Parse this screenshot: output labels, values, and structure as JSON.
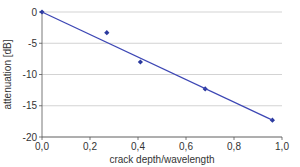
{
  "chart_data": {
    "type": "scatter",
    "x_label": "crack depth/wavelength",
    "y_label": "attenuation [dB]",
    "series": [
      {
        "type": "scatter",
        "marker": "diamond",
        "color": "#2b3a9e",
        "x": [
          0,
          0.27,
          0.41,
          0.68,
          0.96
        ],
        "values": [
          0,
          -3.3,
          -8,
          -12.3,
          -17.3
        ]
      },
      {
        "type": "line",
        "line_style": "solid",
        "color": "#3c46b4",
        "x": [
          0,
          0.96
        ],
        "values": [
          0,
          -17.3
        ]
      }
    ],
    "xlim": [
      0,
      1
    ],
    "xticks": [
      {
        "value": 0,
        "label": "0,0"
      },
      {
        "value": 0.2,
        "label": "0,2"
      },
      {
        "value": 0.4,
        "label": "0,4"
      },
      {
        "value": 0.6,
        "label": "0,6"
      },
      {
        "value": 0.8,
        "label": "0,8"
      },
      {
        "value": 1,
        "label": "1,0"
      }
    ],
    "ylim": [
      -20,
      0
    ],
    "yticks": [
      0,
      -5,
      -10,
      -15,
      -20
    ],
    "grid": true
  }
}
